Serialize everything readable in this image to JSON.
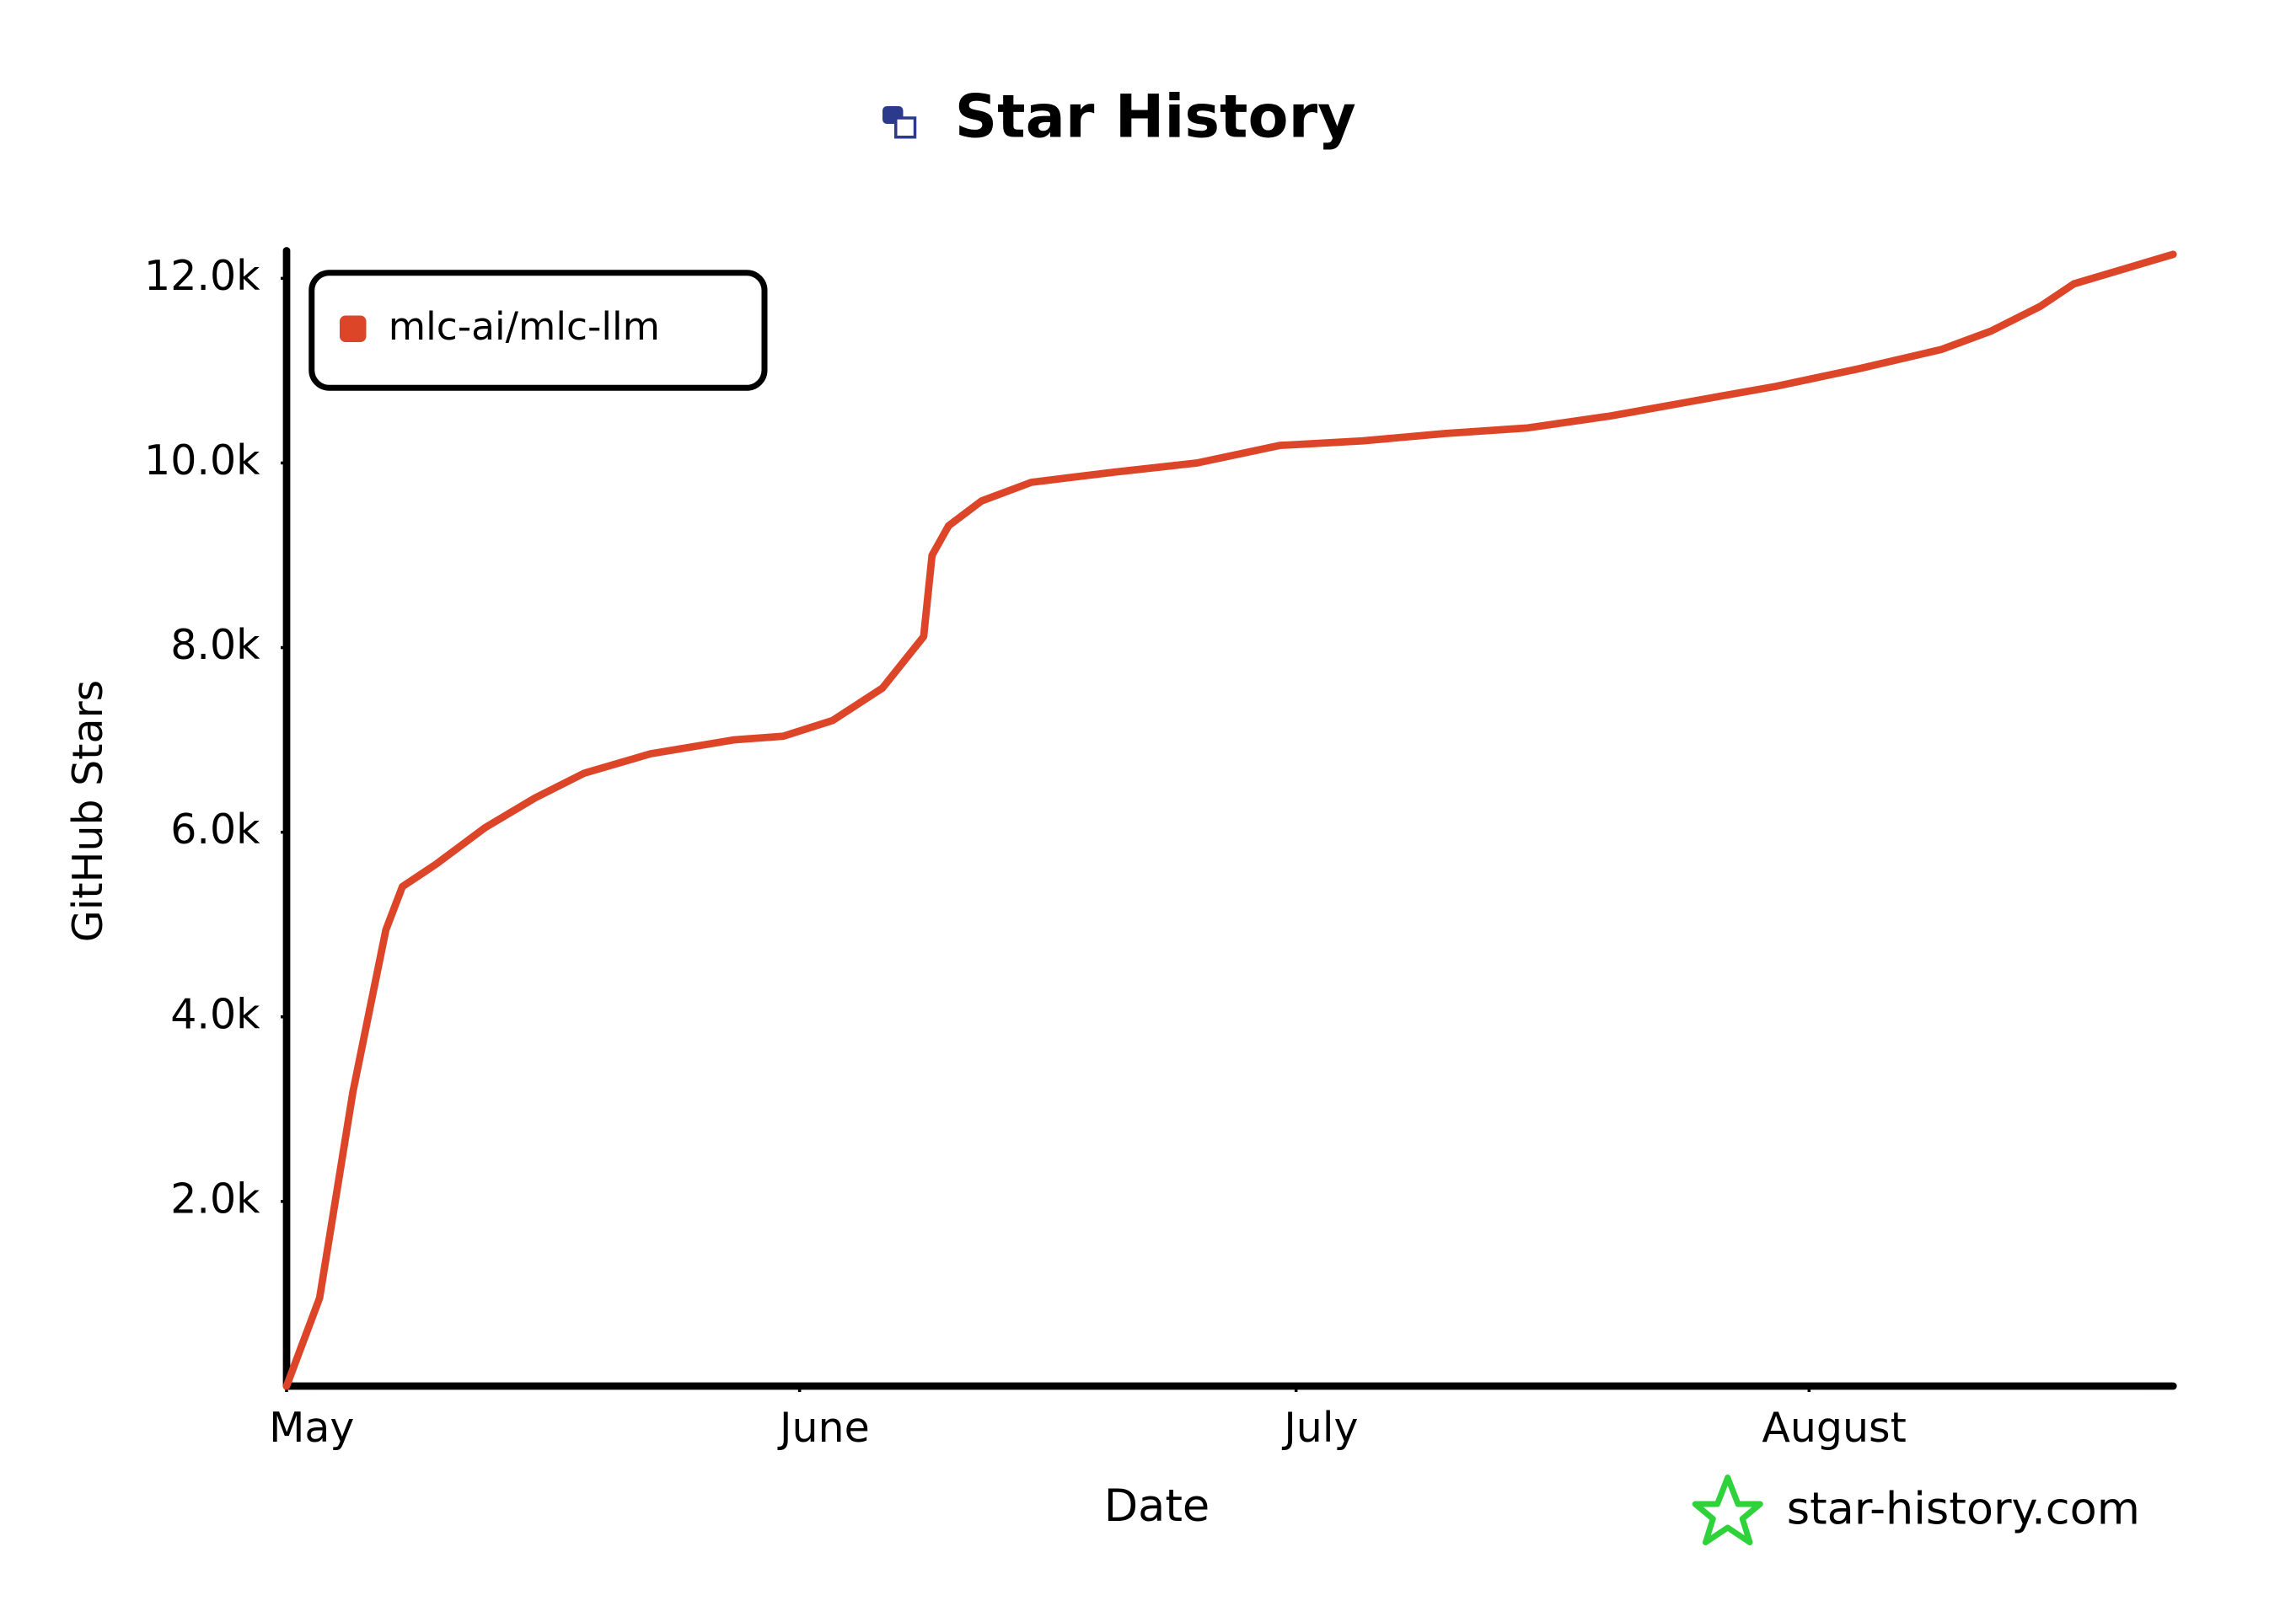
{
  "chart_data": {
    "type": "line",
    "title": "Star History",
    "x_label": "Date",
    "y_label": "GitHub Stars",
    "watermark": "star-history.com",
    "legend": "top-left",
    "x": [
      0,
      2,
      3,
      4,
      5,
      6,
      7,
      9,
      12,
      15,
      18,
      22,
      27,
      30,
      33,
      36,
      38.5,
      39,
      40,
      42,
      45,
      50,
      55,
      60,
      65,
      70,
      75,
      80,
      85,
      90,
      95,
      100,
      103,
      106,
      108,
      114
    ],
    "series": [
      {
        "name": "mlc-ai/mlc-llm",
        "color": "#dd4528",
        "values": [
          0,
          955,
          2070,
          3180,
          4060,
          4940,
          5410,
          5650,
          6050,
          6370,
          6640,
          6850,
          7000,
          7040,
          7210,
          7560,
          8120,
          9000,
          9320,
          9590,
          9790,
          9900,
          10000,
          10190,
          10240,
          10320,
          10380,
          10510,
          10670,
          10830,
          11020,
          11230,
          11430,
          11700,
          11940,
          12260
        ]
      }
    ],
    "xlim": [
      0,
      114
    ],
    "xticks": [
      {
        "value": 0,
        "label": "May"
      },
      {
        "value": 31,
        "label": "June"
      },
      {
        "value": 61,
        "label": "July"
      },
      {
        "value": 92,
        "label": "August"
      }
    ],
    "ylim": [
      0,
      12300
    ],
    "yticks": [
      {
        "value": 2000,
        "label": "2.0k"
      },
      {
        "value": 4000,
        "label": "4.0k"
      },
      {
        "value": 6000,
        "label": "6.0k"
      },
      {
        "value": 8000,
        "label": "8.0k"
      },
      {
        "value": 10000,
        "label": "10.0k"
      },
      {
        "value": 12000,
        "label": "12.0k"
      }
    ]
  }
}
